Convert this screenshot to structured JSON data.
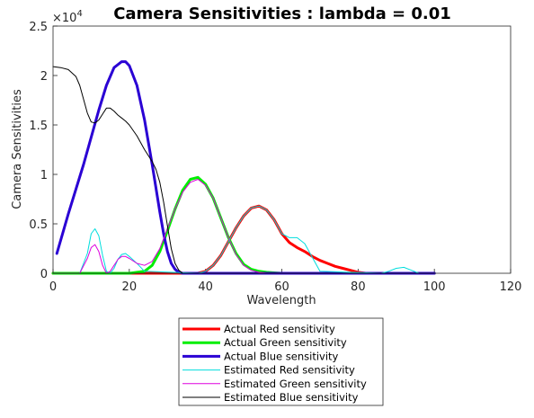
{
  "chart_data": {
    "type": "line",
    "title": "Camera Sensitivities : lambda = 0.01",
    "xlabel": "Wavelength",
    "ylabel": "Camera Sensitivities",
    "xlim": [
      0,
      120
    ],
    "ylim": [
      0,
      2.5
    ],
    "y_exponent_label": "×10",
    "y_exponent_power": "4",
    "xticks": [
      "0",
      "20",
      "40",
      "60",
      "80",
      "100",
      "120"
    ],
    "yticks": [
      "0",
      "0.5",
      "1",
      "1.5",
      "2",
      "2.5"
    ],
    "legend_position": "below",
    "series": [
      {
        "name": "Actual Red sensitivity",
        "color": "#ff0000",
        "width": 3,
        "x": [
          0,
          38,
          40,
          42,
          44,
          46,
          48,
          50,
          52,
          54,
          56,
          58,
          60,
          62,
          64,
          66,
          68,
          70,
          72,
          74,
          76,
          78,
          80,
          82,
          100
        ],
        "y": [
          0,
          0,
          0.02,
          0.08,
          0.18,
          0.32,
          0.46,
          0.58,
          0.66,
          0.68,
          0.64,
          0.54,
          0.4,
          0.31,
          0.26,
          0.22,
          0.17,
          0.13,
          0.1,
          0.07,
          0.05,
          0.03,
          0.01,
          0,
          0
        ]
      },
      {
        "name": "Actual Green sensitivity",
        "color": "#00ee00",
        "width": 3,
        "x": [
          0,
          20,
          24,
          26,
          28,
          30,
          32,
          34,
          36,
          38,
          40,
          42,
          44,
          46,
          48,
          50,
          52,
          54,
          56,
          58,
          60,
          62,
          100
        ],
        "y": [
          0,
          0,
          0.02,
          0.08,
          0.22,
          0.43,
          0.65,
          0.84,
          0.95,
          0.97,
          0.9,
          0.76,
          0.56,
          0.36,
          0.2,
          0.09,
          0.04,
          0.02,
          0.01,
          0.005,
          0,
          0,
          0
        ]
      },
      {
        "name": "Actual Blue sensitivity",
        "color": "#2a00d4",
        "width": 3,
        "x": [
          1,
          4,
          8,
          12,
          14,
          16,
          18,
          19,
          20,
          22,
          24,
          26,
          28,
          29,
          30,
          31,
          32,
          33,
          34,
          36,
          100
        ],
        "y": [
          0.2,
          0.6,
          1.1,
          1.65,
          1.9,
          2.08,
          2.14,
          2.14,
          2.1,
          1.9,
          1.55,
          1.1,
          0.62,
          0.4,
          0.22,
          0.1,
          0.04,
          0.01,
          0,
          0,
          0
        ]
      },
      {
        "name": "Estimated Red sensitivity",
        "color": "#00dddd",
        "width": 1,
        "x": [
          0,
          7,
          9,
          10,
          11,
          12,
          13,
          14,
          15,
          16,
          17,
          18,
          19,
          20,
          22,
          24,
          38,
          40,
          42,
          44,
          46,
          48,
          50,
          52,
          54,
          56,
          58,
          60,
          62,
          64,
          66,
          68,
          70,
          86,
          88,
          90,
          92,
          94,
          96,
          100
        ],
        "y": [
          0,
          0,
          0.2,
          0.4,
          0.45,
          0.38,
          0.18,
          0.02,
          0,
          0.05,
          0.14,
          0.19,
          0.2,
          0.17,
          0.1,
          0.02,
          0,
          0.02,
          0.08,
          0.18,
          0.32,
          0.46,
          0.58,
          0.66,
          0.68,
          0.64,
          0.54,
          0.4,
          0.36,
          0.36,
          0.3,
          0.16,
          0.02,
          0,
          0.02,
          0.05,
          0.06,
          0.03,
          0,
          0
        ]
      },
      {
        "name": "Estimated Green sensitivity",
        "color": "#dd00dd",
        "width": 1,
        "x": [
          0,
          7,
          9,
          10,
          11,
          12,
          13,
          14,
          15,
          16,
          17,
          18,
          19,
          20,
          22,
          24,
          26,
          28,
          30,
          32,
          34,
          36,
          38,
          40,
          42,
          44,
          46,
          48,
          50,
          52,
          54,
          56,
          100
        ],
        "y": [
          0,
          0,
          0.15,
          0.26,
          0.29,
          0.22,
          0.08,
          0,
          0.02,
          0.08,
          0.14,
          0.17,
          0.17,
          0.15,
          0.1,
          0.08,
          0.12,
          0.25,
          0.45,
          0.65,
          0.82,
          0.92,
          0.95,
          0.89,
          0.76,
          0.56,
          0.36,
          0.19,
          0.08,
          0.03,
          0.01,
          0,
          0
        ]
      },
      {
        "name": "Estimated Blue sensitivity",
        "color": "#000000",
        "width": 1,
        "x": [
          0,
          2,
          4,
          6,
          7,
          8,
          9,
          10,
          11,
          12,
          13,
          14,
          15,
          16,
          17,
          18,
          19,
          20,
          22,
          24,
          26,
          27,
          28,
          29,
          30,
          31,
          32,
          33,
          34,
          36,
          100
        ],
        "y": [
          2.09,
          2.08,
          2.06,
          1.99,
          1.9,
          1.76,
          1.62,
          1.53,
          1.52,
          1.55,
          1.61,
          1.67,
          1.67,
          1.64,
          1.6,
          1.57,
          1.54,
          1.5,
          1.39,
          1.25,
          1.13,
          1.05,
          0.92,
          0.72,
          0.48,
          0.25,
          0.1,
          0.03,
          0,
          0,
          0
        ]
      }
    ]
  }
}
